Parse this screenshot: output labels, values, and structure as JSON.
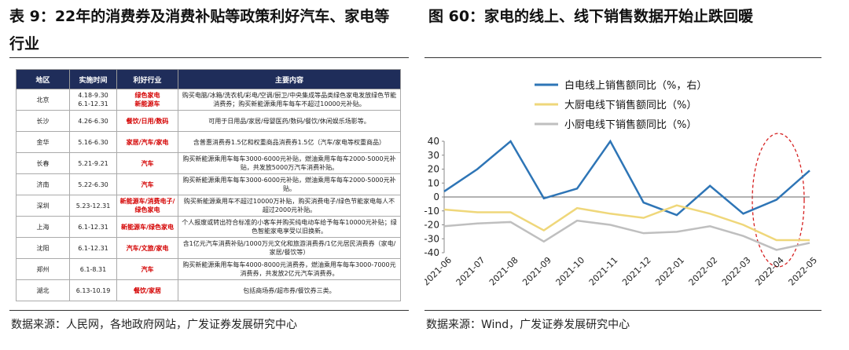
{
  "left": {
    "title": "表 9：22年的消费券及消费补贴等政策利好汽车、家电等行业",
    "table": {
      "header": [
        "地区",
        "实施时间",
        "利好行业",
        "主要内容"
      ],
      "rows": [
        [
          "北京",
          "4.18-9.30\n6.1-12.31",
          "绿色家电\n新能源车",
          "购买电脑/冰箱/洗衣机/彩电/空调/厨卫/中央集成等品类绿色家电发放绿色节能消费券；购买新能源乘用车每车不超过10000元补贴。"
        ],
        [
          "长沙",
          "4.26-6.30",
          "餐饮/日用/数码",
          "可用于日用品/家居/母婴医药/数码/餐饮/休闲娱乐场影等。"
        ],
        [
          "金华",
          "5.16-6.30",
          "家居/汽车/家电",
          "含普惠消费券1.5亿和权重商品消费券1.5亿（汽车/家电等权重商品）"
        ],
        [
          "长春",
          "5.21-9.21",
          "汽车",
          "购买新能源乘用车每车3000-6000元补贴，燃油乘用车每车2000-5000元补贴，共发放5000万汽车消费补贴。"
        ],
        [
          "济南",
          "5.22-6.30",
          "汽车",
          "购买新能源乘用车每车3000-6000元补贴，燃油乘用车每车2000-5000元补贴。"
        ],
        [
          "深圳",
          "5.23-12.31",
          "新能源车/消费电子/绿色家电",
          "购买新能源乘用车不超过10000万补贴，购买消费电子/绿色节能家电每人不超过2000元补贴。"
        ],
        [
          "上海",
          "6.1-12.31",
          "新能源车/绿色家电",
          "个人报废或转出符合标准的小客车并购买纯电动车给予每车10000元补贴；绿色智能家电享受以旧换新。"
        ],
        [
          "沈阳",
          "6.1-12.31",
          "汽车/文旅/家电",
          "含1亿元汽车消费补贴/1000万元文化和旅游消费券/1亿元居民消费券（家电/家居/餐饮等）"
        ],
        [
          "郑州",
          "6.1-8.31",
          "汽车",
          "购买新能源乘用车每车4000-8000元消费券，燃油乘用车每车3000-7000元消费券，共发放2亿元汽车消费券。"
        ],
        [
          "湖北",
          "6.13-10.19",
          "餐饮/家居",
          "包括商场券/超市券/餐饮券三类。"
        ]
      ]
    },
    "source": "数据来源：人民网，各地政府网站，广发证券发展研究中心"
  },
  "chart_data": {
    "type": "line",
    "title": "图 60：家电的线上、线下销售数据开始止跌回暖",
    "categories": [
      "2021-06",
      "2021-07",
      "2021-08",
      "2021-09",
      "2021-10",
      "2021-11",
      "2021-12",
      "2022-01",
      "2022-02",
      "2022-03",
      "2022-04",
      "2022-05"
    ],
    "series": [
      {
        "name": "白电线上销售额同比（%，右）",
        "color": "#2e75b6",
        "values": [
          4,
          20,
          40,
          -1,
          6,
          40,
          -4,
          -13,
          8,
          -12,
          -2,
          19
        ]
      },
      {
        "name": "大厨电线下销售额同比（%）",
        "color": "#efd77a",
        "values": [
          -9,
          -11,
          -11,
          -24,
          -8,
          -12,
          -15,
          -6,
          -12,
          -20,
          -31,
          -31
        ]
      },
      {
        "name": "小厨电线下销售额同比（%）",
        "color": "#bfbfbf",
        "values": [
          -21,
          -19,
          -18,
          -32,
          -17,
          -20,
          -26,
          -25,
          -21,
          -28,
          -38,
          -33
        ]
      }
    ],
    "ylim": [
      -40,
      40
    ],
    "yticks": [
      -40,
      -30,
      -20,
      -10,
      0,
      10,
      20,
      30,
      40
    ],
    "source": "数据来源：Wind，广发证券发展研究中心"
  }
}
